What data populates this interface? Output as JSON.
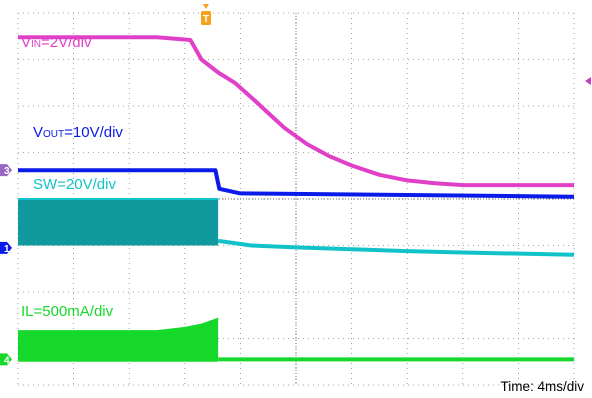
{
  "chart_data": {
    "type": "line",
    "time_label": "Time: 4ms/div",
    "grid": true,
    "x": {
      "unit": "div",
      "range": [
        0,
        10
      ]
    },
    "y": {
      "unit": "div",
      "range": [
        -4,
        4
      ]
    },
    "trigger_marker": "T",
    "series": [
      {
        "name": "VIN=2V/div",
        "label_main": "V",
        "label_sub": "IN",
        "label_rest": "=2V/div",
        "color": "#e040c8",
        "points": [
          [
            0,
            3.48
          ],
          [
            2.5,
            3.48
          ],
          [
            3.1,
            3.42
          ],
          [
            3.3,
            3.0
          ],
          [
            3.6,
            2.72
          ],
          [
            3.9,
            2.5
          ],
          [
            4.2,
            2.18
          ],
          [
            4.5,
            1.85
          ],
          [
            4.8,
            1.52
          ],
          [
            5.2,
            1.18
          ],
          [
            5.6,
            0.92
          ],
          [
            6.0,
            0.72
          ],
          [
            6.5,
            0.52
          ],
          [
            7.0,
            0.4
          ],
          [
            7.5,
            0.34
          ],
          [
            8.0,
            0.3
          ],
          [
            10.0,
            0.3
          ]
        ]
      },
      {
        "name": "VOUT=10V/div",
        "label_main": "V",
        "label_sub": "OUT",
        "label_rest": "=10V/div",
        "color": "#0a1ae8",
        "points": [
          [
            0,
            0.62
          ],
          [
            3.55,
            0.62
          ],
          [
            3.62,
            0.22
          ],
          [
            4.0,
            0.12
          ],
          [
            10.0,
            0.05
          ]
        ]
      },
      {
        "name": "SW=20V/div",
        "label_main": "SW=20V/div",
        "label_sub": "",
        "label_rest": "",
        "color": "#11c2c8",
        "fill_color": "#109a9e",
        "burst": {
          "x_start": 0,
          "x_end": 3.6,
          "y_top": 0.0,
          "y_bottom": -1.0
        },
        "points": [
          [
            3.6,
            -0.9
          ],
          [
            4.2,
            -1.0
          ],
          [
            5.0,
            -1.04
          ],
          [
            6.0,
            -1.08
          ],
          [
            7.0,
            -1.12
          ],
          [
            8.0,
            -1.15
          ],
          [
            10.0,
            -1.2
          ]
        ]
      },
      {
        "name": "IL=500mA/div",
        "label_main": "IL=500mA/div",
        "label_sub": "",
        "label_rest": "",
        "color": "#16d82a",
        "fill_color": "#16d82a",
        "ripple": {
          "x_start": 0,
          "x_end": 3.6,
          "bottom": -3.5,
          "top_points": [
            [
              0,
              -2.82
            ],
            [
              2.5,
              -2.82
            ],
            [
              3.0,
              -2.75
            ],
            [
              3.3,
              -2.68
            ],
            [
              3.6,
              -2.55
            ]
          ]
        },
        "points": [
          [
            3.6,
            -3.45
          ],
          [
            10.0,
            -3.45
          ]
        ]
      }
    ],
    "channel_markers": [
      {
        "name": "ch3-marker",
        "label": "3",
        "color": "#9a68c0",
        "y": 0.62
      },
      {
        "name": "ch1-marker",
        "label": "1",
        "color": "#0a1ae8",
        "y": -1.05
      },
      {
        "name": "ch4-marker",
        "label": "4",
        "color": "#16d82a",
        "y": -3.45
      }
    ]
  }
}
